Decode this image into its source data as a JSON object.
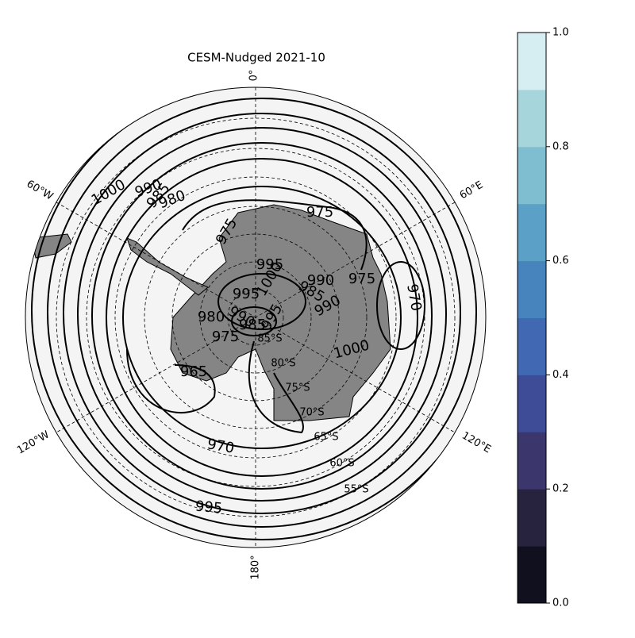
{
  "title": "CESM-Nudged 2021-10",
  "longitude_labels": [
    "0°",
    "60°E",
    "120°E",
    "180°",
    "120°W",
    "60°W"
  ],
  "latitude_labels": [
    "85°S",
    "80°S",
    "75°S",
    "70°S",
    "65°S",
    "60°S",
    "55°S"
  ],
  "contour_labels": [
    "1000",
    "990",
    "985",
    "980",
    "975",
    "975",
    "995",
    "1000",
    "995",
    "990",
    "985",
    "990",
    "975",
    "970",
    "980",
    "990",
    "985",
    "995",
    "975",
    "965",
    "1000",
    "970",
    "995"
  ],
  "colorbar": {
    "lim": [
      0,
      1
    ],
    "ticks": [
      {
        "value": 0,
        "label": "0.0"
      },
      {
        "value": 0.2,
        "label": "0.2"
      },
      {
        "value": 0.4,
        "label": "0.4"
      },
      {
        "value": 0.6,
        "label": "0.6"
      },
      {
        "value": 0.8,
        "label": "0.8"
      },
      {
        "value": 1,
        "label": "1.0"
      }
    ],
    "colors": [
      "#11101f",
      "#27233f",
      "#3b366c",
      "#3e4b96",
      "#4169b3",
      "#4784be",
      "#5ba0c6",
      "#7fbdd0",
      "#a7d5dc",
      "#d6eef1"
    ]
  }
}
